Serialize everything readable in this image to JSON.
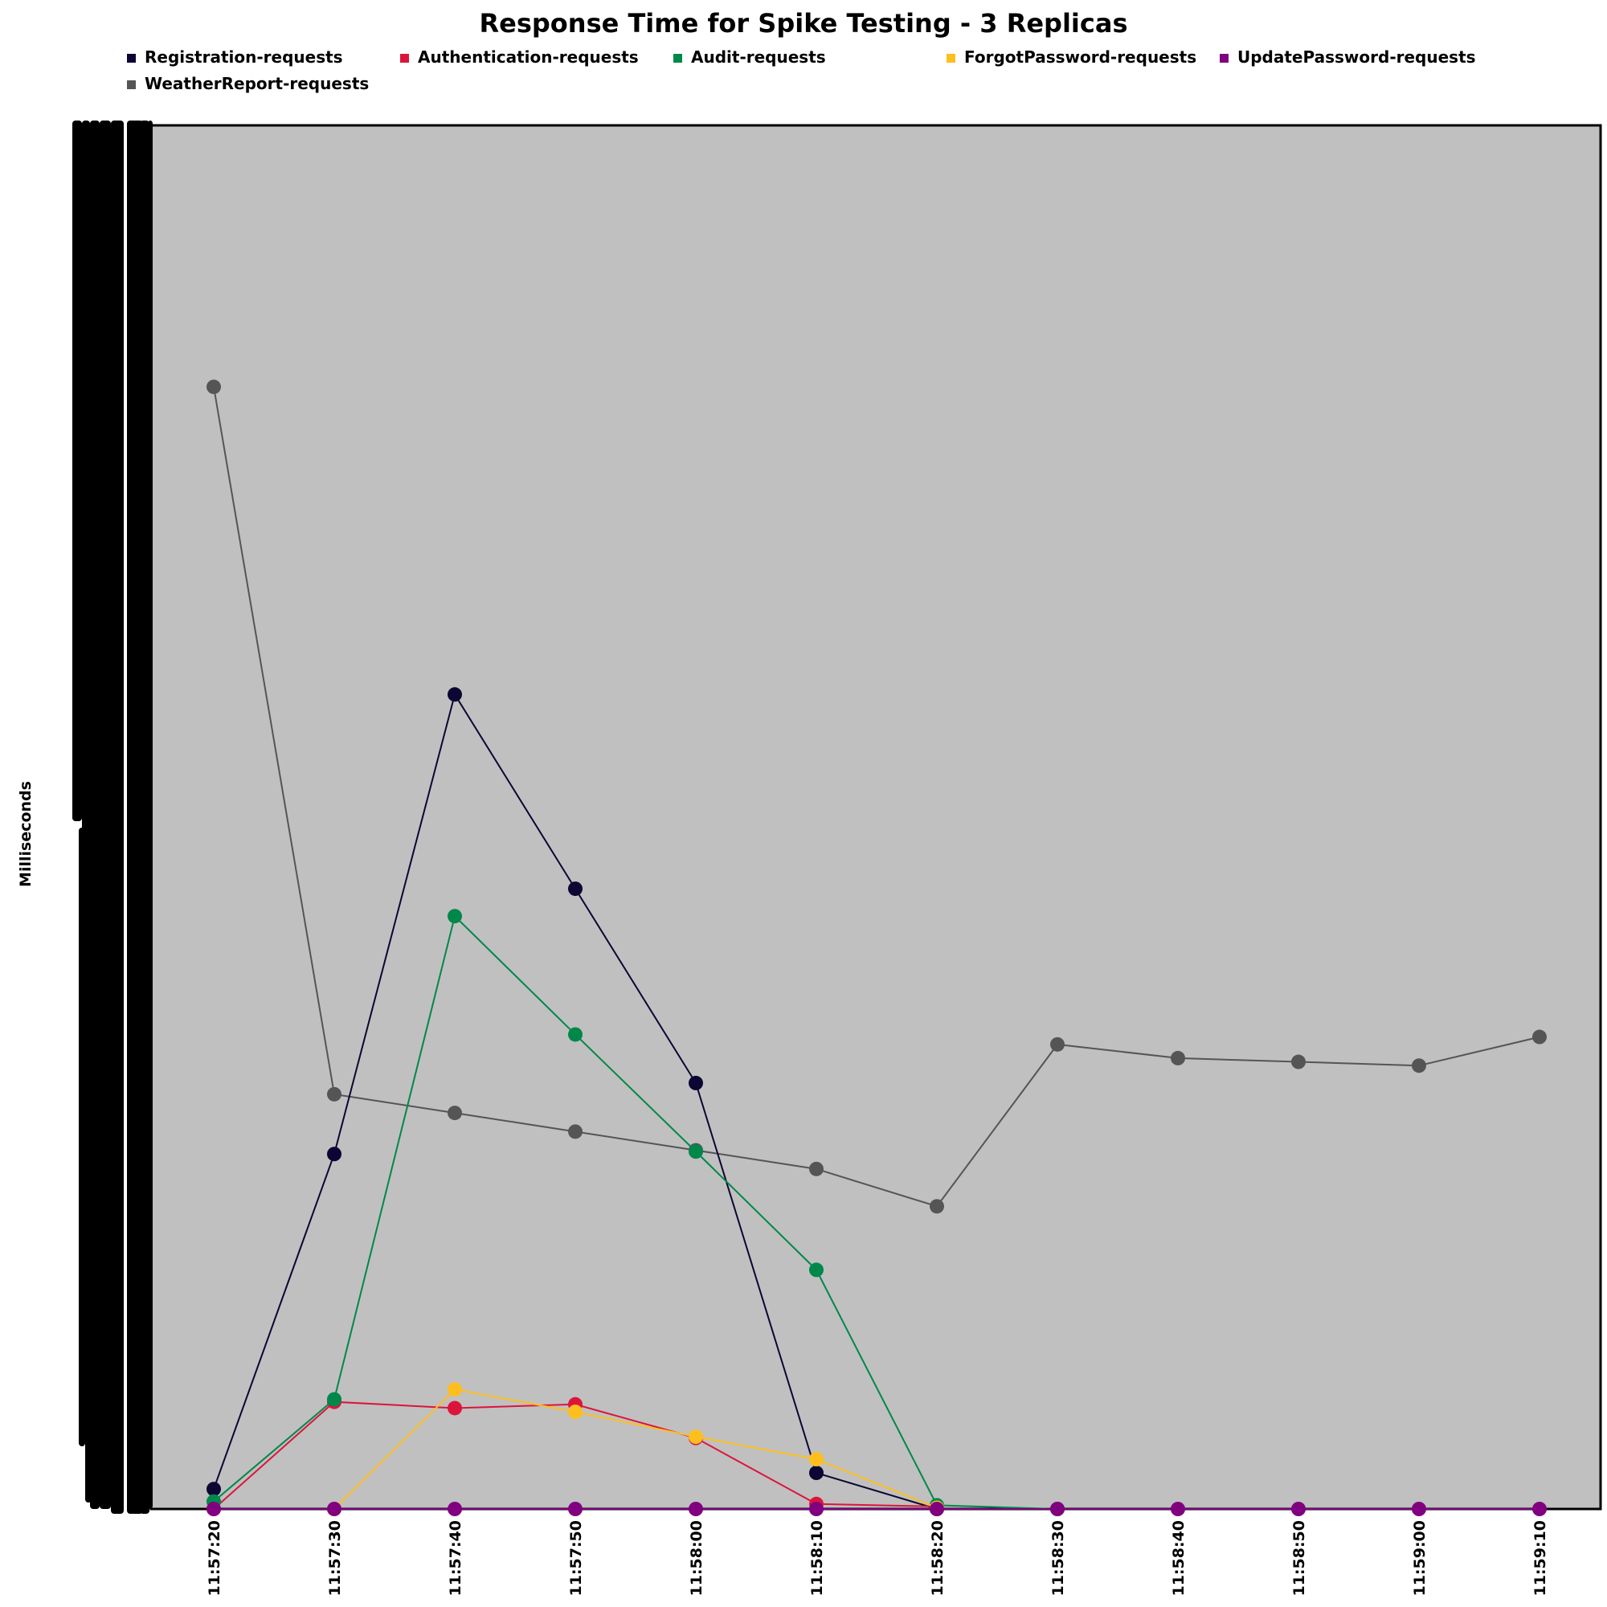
{
  "chart_data": {
    "type": "line",
    "title": "Response Time for Spike Testing - 3 Replicas",
    "xlabel": "",
    "ylabel": "Milliseconds",
    "x": [
      "11:57:20",
      "11:57:30",
      "11:57:40",
      "11:57:50",
      "11:58:00",
      "11:58:10",
      "11:58:20",
      "11:58:30",
      "11:58:40",
      "11:58:50",
      "11:59:00",
      "11:59:10"
    ],
    "ylim": [
      0,
      1000
    ],
    "grid": false,
    "legend_position": "top",
    "plot_background": "#c0c0c0",
    "series": [
      {
        "name": "Registration-requests",
        "color": "#0b0633",
        "values": [
          16,
          285,
          654,
          498,
          342,
          29,
          0,
          null,
          null,
          null,
          null,
          null
        ]
      },
      {
        "name": "Authentication-requests",
        "color": "#dc143c",
        "values": [
          0,
          86,
          81,
          84,
          57,
          4,
          2,
          null,
          null,
          null,
          null,
          null
        ]
      },
      {
        "name": "Audit-requests",
        "color": "#00874a",
        "values": [
          6,
          88,
          476,
          381,
          287,
          192,
          3,
          0,
          null,
          null,
          null,
          null
        ]
      },
      {
        "name": "ForgotPassword-requests",
        "color": "#fdbf1f",
        "values": [
          null,
          0,
          96,
          78,
          58,
          40,
          1,
          null,
          null,
          null,
          null,
          null
        ]
      },
      {
        "name": "UpdatePassword-requests",
        "color": "#800080",
        "values": [
          0,
          0,
          0,
          0,
          0,
          0,
          0,
          0,
          0,
          0,
          0,
          0
        ]
      },
      {
        "name": "WeatherReport-requests",
        "color": "#555555",
        "values": [
          901,
          333,
          318,
          303,
          288,
          273,
          243,
          373,
          362,
          359,
          356,
          379
        ]
      }
    ]
  }
}
